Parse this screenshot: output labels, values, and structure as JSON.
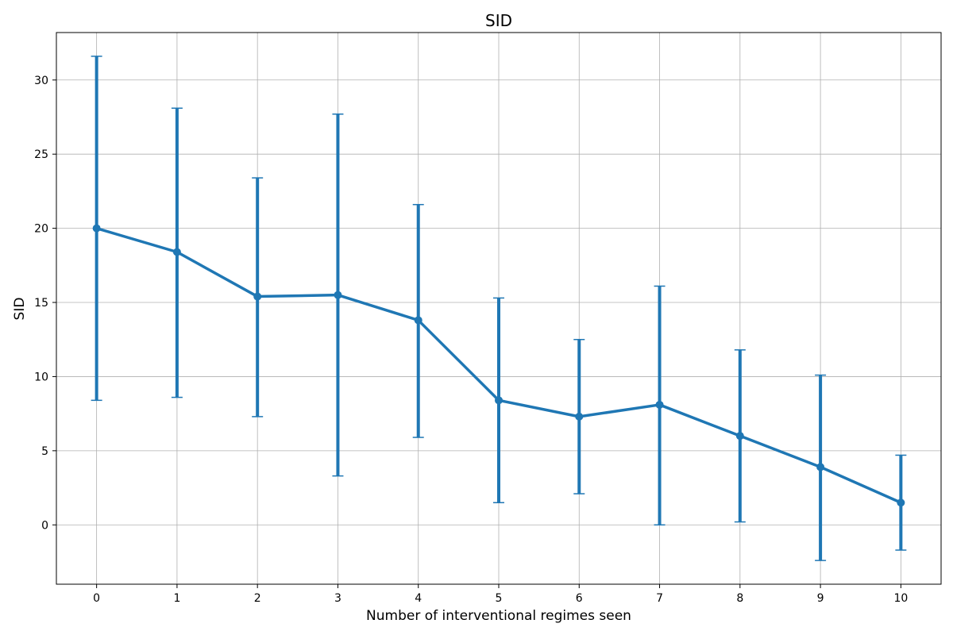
{
  "chart_data": {
    "type": "line",
    "title": "SID",
    "xlabel": "Number of interventional regimes seen",
    "ylabel": "SID",
    "x": [
      0,
      1,
      2,
      3,
      4,
      5,
      6,
      7,
      8,
      9,
      10
    ],
    "series": [
      {
        "values": [
          20.0,
          18.4,
          15.4,
          15.5,
          13.8,
          8.4,
          7.3,
          8.1,
          6.0,
          3.9,
          1.5
        ],
        "error_lower": [
          8.4,
          8.6,
          7.3,
          3.3,
          5.9,
          1.5,
          2.1,
          0.0,
          0.2,
          -2.4,
          -1.7
        ],
        "error_upper": [
          31.6,
          28.1,
          23.4,
          27.7,
          21.6,
          15.3,
          12.5,
          16.1,
          11.8,
          10.1,
          4.7
        ]
      }
    ],
    "xlim": [
      -0.5,
      10.5
    ],
    "ylim": [
      -4,
      33.2
    ],
    "xticks": [
      "0",
      "1",
      "2",
      "3",
      "4",
      "5",
      "6",
      "7",
      "8",
      "9",
      "10"
    ],
    "yticks": [
      "0",
      "5",
      "10",
      "15",
      "20",
      "25",
      "30"
    ],
    "grid": true,
    "color": "#1f77b4"
  }
}
